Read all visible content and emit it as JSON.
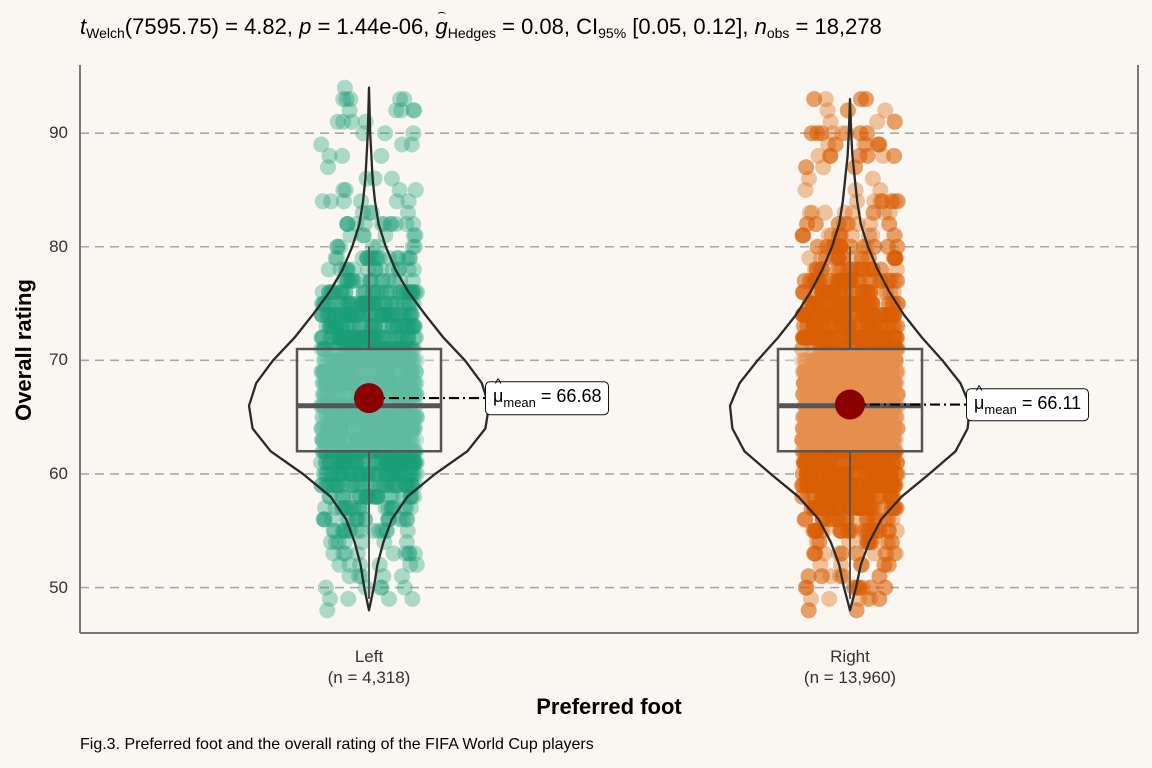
{
  "subtitle": {
    "t_sym": "t",
    "t_sub": "Welch",
    "df": "(7595.75) = 4.82, ",
    "p_sym": "p",
    "p_val": " = 1.44e-06, ",
    "g_sym": "g",
    "g_sub": "Hedges",
    "g_val": " = 0.08, CI",
    "ci_sub": "95%",
    "ci_val": " [0.05, 0.12], ",
    "n_sym": "n",
    "n_sub": "obs",
    "n_val": " = 18,278"
  },
  "caption": "Fig.3. Preferred foot and the overall rating of the FIFA World Cup players",
  "mean_label": {
    "mu": "μ",
    "sub": "mean",
    "left": " = 66.68",
    "right": " = 66.11"
  },
  "chart_data": {
    "type": "violin",
    "xlabel": "Preferred foot",
    "ylabel": "Overall rating",
    "ylim": [
      46,
      96
    ],
    "yticks": [
      50,
      60,
      70,
      80,
      90
    ],
    "grid": "horizontal dashed",
    "categories": [
      {
        "label": "Left",
        "n_label": "(n = 4,318)",
        "color": "#1b9e77",
        "mean": 66.68,
        "box": {
          "min": 49,
          "q1": 62,
          "median": 66,
          "q3": 71,
          "max": 80
        },
        "range": [
          48,
          94
        ],
        "violin": [
          [
            48,
            0.0
          ],
          [
            50,
            0.04
          ],
          [
            52,
            0.07
          ],
          [
            54,
            0.12
          ],
          [
            56,
            0.19
          ],
          [
            58,
            0.32
          ],
          [
            60,
            0.55
          ],
          [
            62,
            0.82
          ],
          [
            64,
            0.97
          ],
          [
            66,
            1.0
          ],
          [
            68,
            0.94
          ],
          [
            70,
            0.8
          ],
          [
            72,
            0.62
          ],
          [
            74,
            0.47
          ],
          [
            76,
            0.33
          ],
          [
            78,
            0.22
          ],
          [
            80,
            0.14
          ],
          [
            82,
            0.08
          ],
          [
            84,
            0.05
          ],
          [
            86,
            0.03
          ],
          [
            88,
            0.02
          ],
          [
            90,
            0.01
          ],
          [
            92,
            0.005
          ],
          [
            94,
            0.0
          ]
        ]
      },
      {
        "label": "Right",
        "n_label": "(n = 13,960)",
        "color": "#d95f02",
        "mean": 66.11,
        "box": {
          "min": 49,
          "q1": 62,
          "median": 66,
          "q3": 71,
          "max": 80
        },
        "range": [
          48,
          93
        ],
        "violin": [
          [
            48,
            0.0
          ],
          [
            50,
            0.05
          ],
          [
            52,
            0.09
          ],
          [
            54,
            0.16
          ],
          [
            56,
            0.26
          ],
          [
            58,
            0.43
          ],
          [
            60,
            0.66
          ],
          [
            62,
            0.88
          ],
          [
            64,
            0.98
          ],
          [
            66,
            1.0
          ],
          [
            68,
            0.92
          ],
          [
            70,
            0.77
          ],
          [
            72,
            0.6
          ],
          [
            74,
            0.45
          ],
          [
            76,
            0.33
          ],
          [
            78,
            0.23
          ],
          [
            80,
            0.15
          ],
          [
            82,
            0.09
          ],
          [
            84,
            0.06
          ],
          [
            86,
            0.04
          ],
          [
            88,
            0.02
          ],
          [
            90,
            0.01
          ],
          [
            93,
            0.0
          ]
        ]
      }
    ]
  }
}
